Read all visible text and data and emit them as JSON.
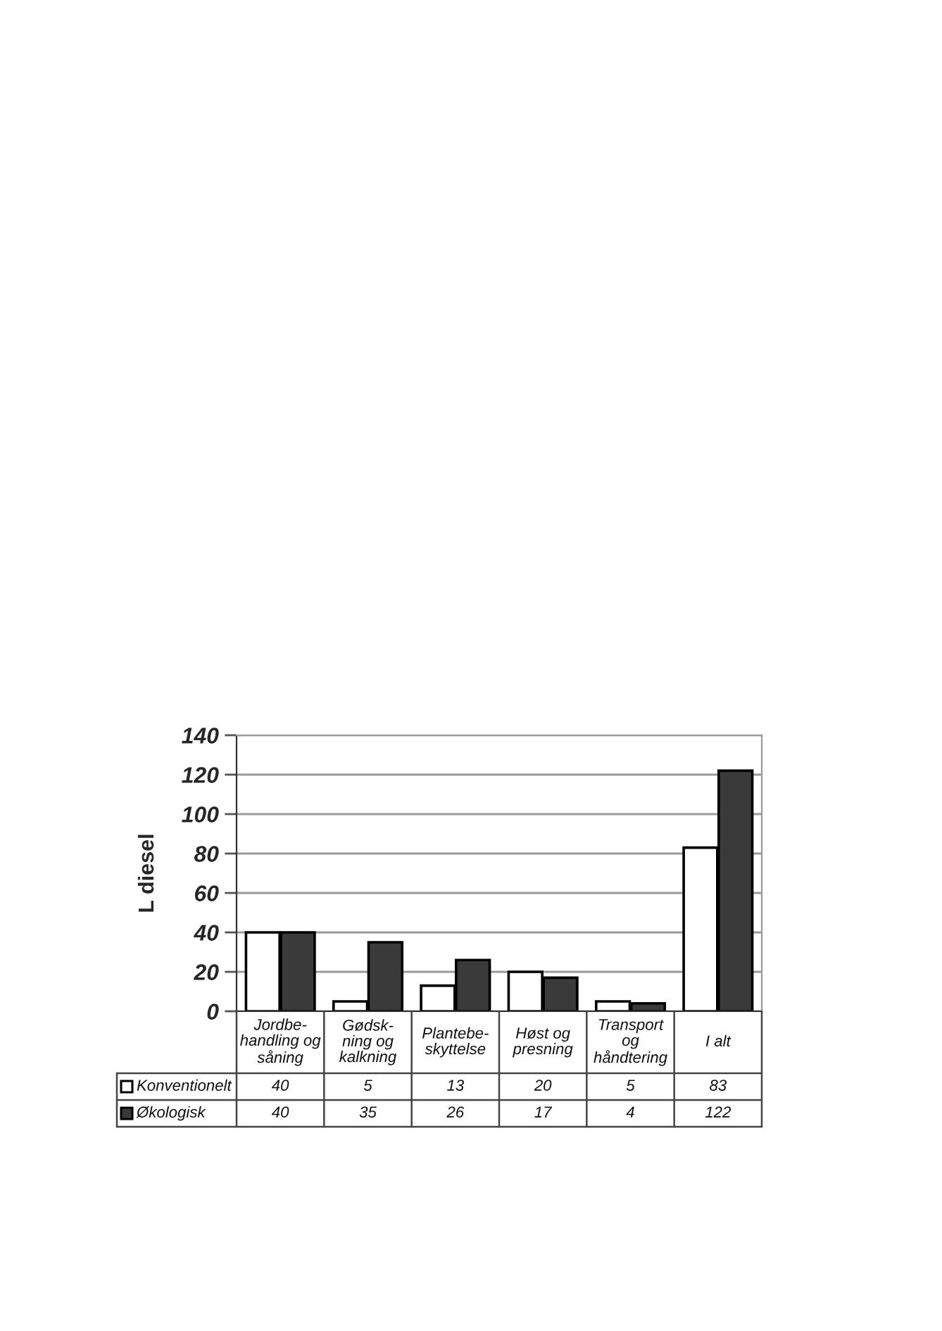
{
  "chart_data": {
    "type": "bar",
    "ylabel": "L diesel",
    "categories": [
      "Jordbe-\nhandling og\nsåning",
      "Gødsk-\nning og\nkalkning",
      "Plantebe-\nskyttelse",
      "Høst og\npresning",
      "Transport\nog\nhåndtering",
      "I alt"
    ],
    "series": [
      {
        "name": "Konventionelt",
        "color": "#ffffff",
        "values": [
          40,
          5,
          13,
          20,
          5,
          83
        ]
      },
      {
        "name": "Økologisk",
        "color": "#3a3a3a",
        "values": [
          40,
          35,
          26,
          17,
          4,
          122
        ]
      }
    ],
    "ylim": [
      0,
      140
    ],
    "yticks": [
      0,
      20,
      40,
      60,
      80,
      100,
      120,
      140
    ],
    "grid": "y",
    "legend": "bottom left",
    "data_labels": true
  }
}
